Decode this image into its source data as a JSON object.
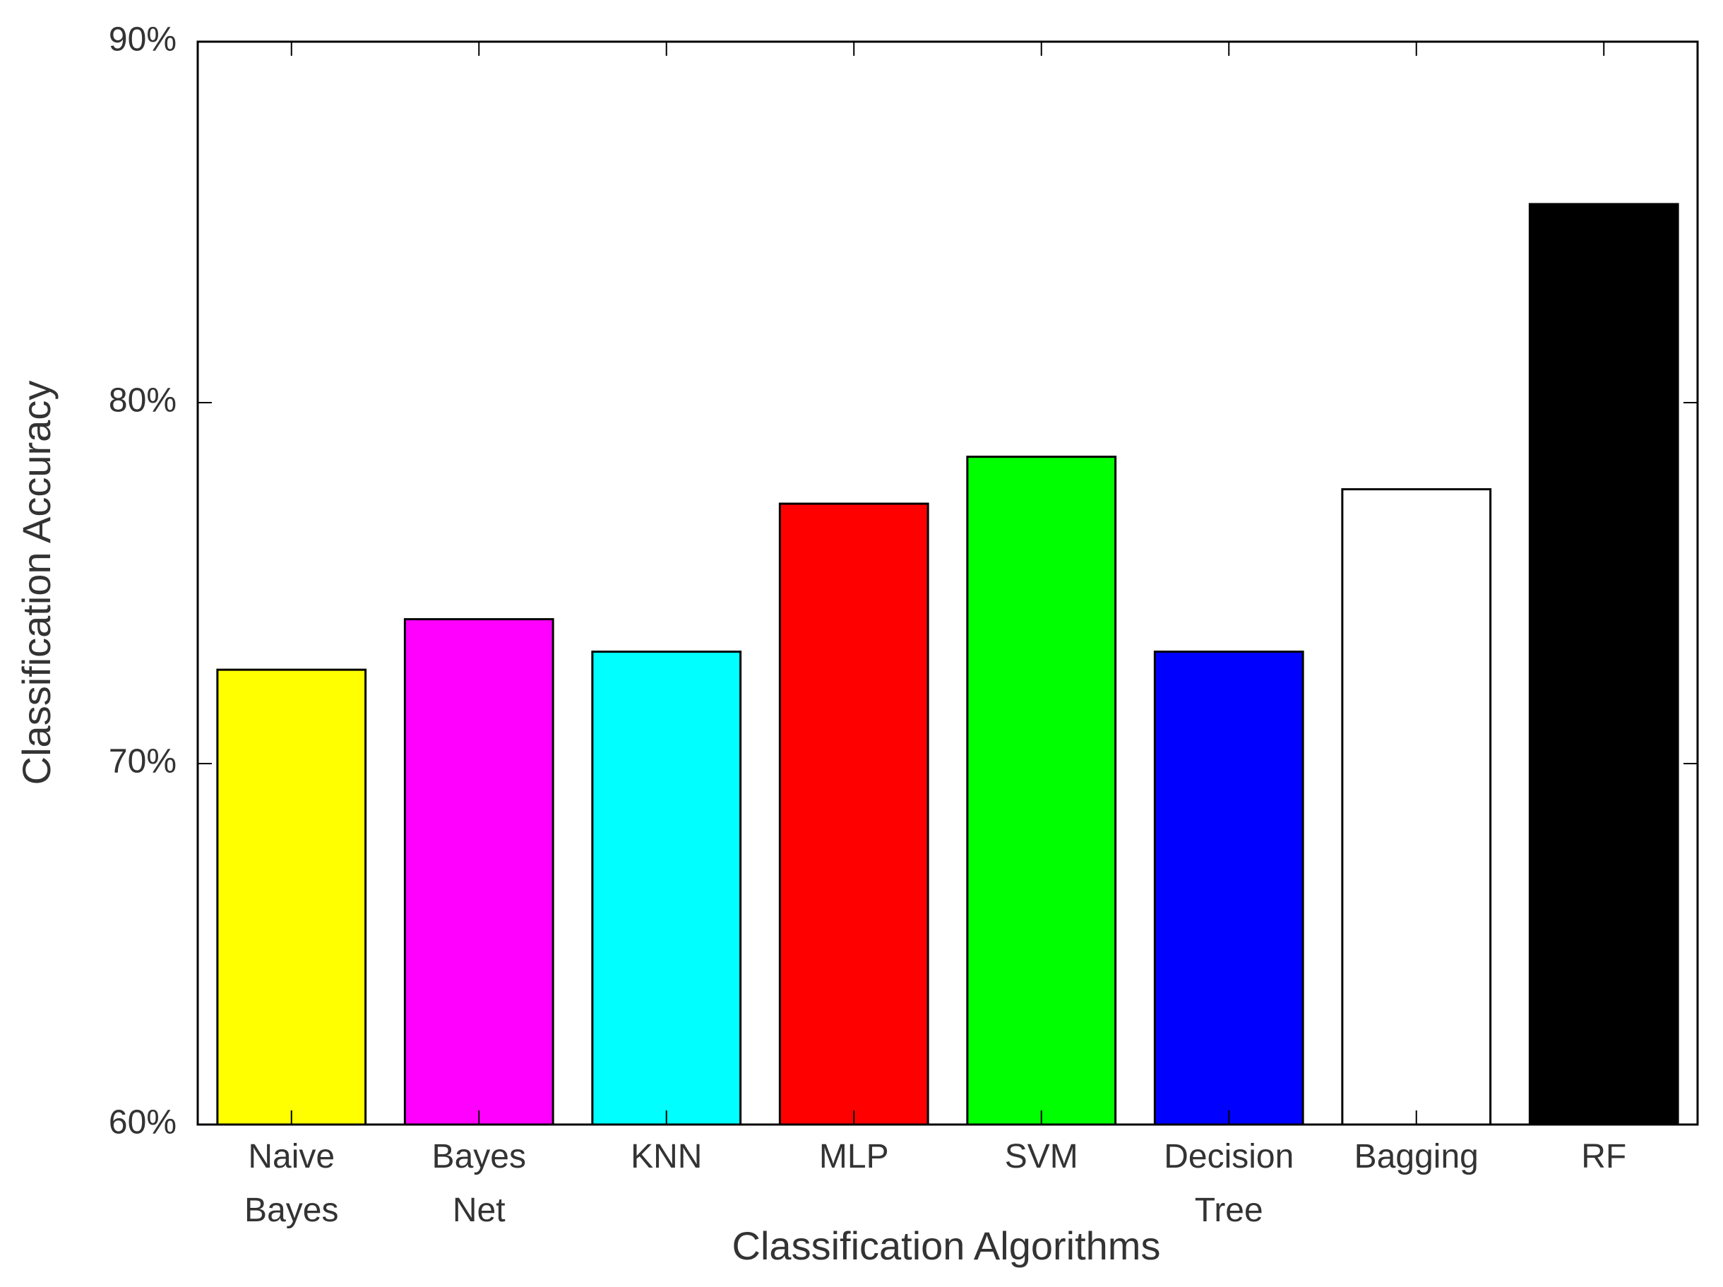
{
  "chart_data": {
    "type": "bar",
    "x_label": "Classification Algorithms",
    "y_label": "Classification Accuracy",
    "categories": [
      "Naive Bayes",
      "Bayes Net",
      "KNN",
      "MLP",
      "SVM",
      "Decision Tree",
      "Bagging",
      "RF"
    ],
    "values": [
      72.6,
      74.0,
      73.1,
      77.2,
      78.5,
      73.1,
      77.6,
      85.5
    ],
    "colors": [
      "#ffff00",
      "#ff00ff",
      "#00ffff",
      "#ff0000",
      "#00ff00",
      "#0000ff",
      "#ffffff",
      "#000000"
    ],
    "ylim": [
      60,
      90
    ],
    "yticks": [
      {
        "value": 60,
        "label": "60%"
      },
      {
        "value": 70,
        "label": "70%"
      },
      {
        "value": 80,
        "label": "80%"
      },
      {
        "value": 90,
        "label": "90%"
      }
    ],
    "grid": false
  }
}
